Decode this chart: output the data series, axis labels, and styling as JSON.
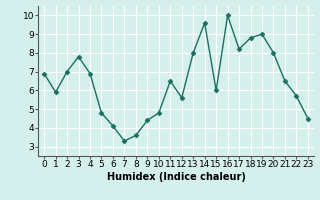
{
  "x": [
    0,
    1,
    2,
    3,
    4,
    5,
    6,
    7,
    8,
    9,
    10,
    11,
    12,
    13,
    14,
    15,
    16,
    17,
    18,
    19,
    20,
    21,
    22,
    23
  ],
  "y": [
    6.9,
    5.9,
    7.0,
    7.8,
    6.9,
    4.8,
    4.1,
    3.3,
    3.6,
    4.4,
    4.8,
    6.5,
    5.6,
    8.0,
    9.6,
    6.0,
    10.0,
    8.2,
    8.8,
    9.0,
    8.0,
    6.5,
    5.7,
    4.5
  ],
  "xlim": [
    -0.5,
    23.5
  ],
  "ylim": [
    2.5,
    10.5
  ],
  "yticks": [
    3,
    4,
    5,
    6,
    7,
    8,
    9,
    10
  ],
  "xticks": [
    0,
    1,
    2,
    3,
    4,
    5,
    6,
    7,
    8,
    9,
    10,
    11,
    12,
    13,
    14,
    15,
    16,
    17,
    18,
    19,
    20,
    21,
    22,
    23
  ],
  "xlabel": "Humidex (Indice chaleur)",
  "line_color": "#1a7060",
  "marker": "D",
  "marker_size": 2.5,
  "line_width": 1.0,
  "bg_color": "#d5f0ec",
  "grid_color": "#ffffff",
  "xlabel_fontsize": 7,
  "tick_fontsize": 6.5,
  "title": ""
}
